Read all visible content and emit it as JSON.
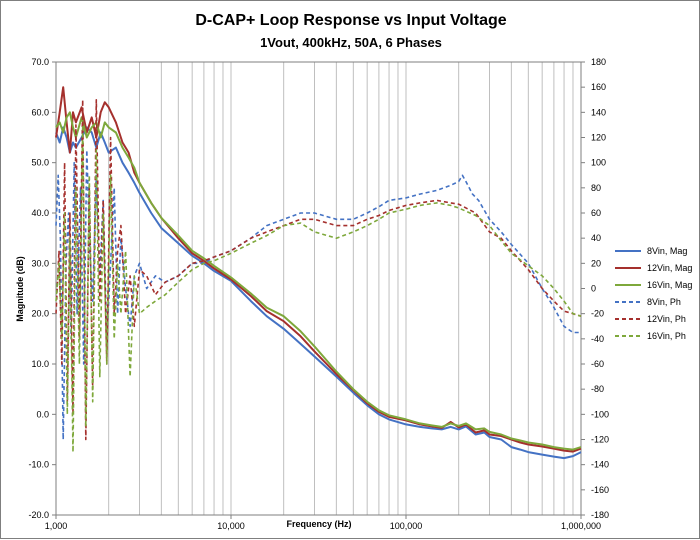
{
  "chart_data": {
    "type": "line",
    "title": "D-CAP+ Loop Response vs Input Voltage",
    "subtitle": "1Vout, 400kHz, 50A, 6 Phases",
    "xlabel": "Frequency (Hz)",
    "ylabel": "Magnitude (dB)",
    "xscale": "log",
    "xlim": [
      1000,
      1000000
    ],
    "ylim": [
      -20,
      70
    ],
    "y2lim": [
      -180,
      180
    ],
    "x_tick_values": [
      1000,
      10000,
      100000,
      1000000
    ],
    "x_tick_labels": [
      "1,000",
      "10,000",
      "100,000",
      "1,000,000"
    ],
    "y_tick_labels": [
      "70.0",
      "60.0",
      "50.0",
      "40.0",
      "30.0",
      "20.0",
      "10.0",
      "0.0",
      "-10.0",
      "-20.0"
    ],
    "y2_tick_labels": [
      "180",
      "160",
      "140",
      "120",
      "100",
      "80",
      "60",
      "40",
      "20",
      "0",
      "-20",
      "-40",
      "-60",
      "-80",
      "-100",
      "-120",
      "-140",
      "-160",
      "-180"
    ],
    "grid": "log-vertical",
    "legend_position": "right",
    "colors": {
      "8vin": "#4472c4",
      "12vin": "#a5302d",
      "16vin": "#7ea83b",
      "grid": "#bfbfbf",
      "frame": "#7f7f7f"
    },
    "series": [
      {
        "name": "8Vin, Mag",
        "axis": "left",
        "style": "solid",
        "color": "#4472c4",
        "x": [
          1000,
          1050,
          1100,
          1150,
          1200,
          1250,
          1300,
          1400,
          1500,
          1600,
          1700,
          1800,
          1900,
          2000,
          2200,
          2400,
          2600,
          2800,
          3000,
          3500,
          4000,
          5000,
          6000,
          7000,
          8000,
          10000,
          13000,
          16000,
          20000,
          25000,
          30000,
          40000,
          50000,
          60000,
          70000,
          80000,
          100000,
          120000,
          140000,
          160000,
          180000,
          200000,
          220000,
          250000,
          280000,
          300000,
          350000,
          400000,
          450000,
          500000,
          600000,
          700000,
          800000,
          900000,
          1000000
        ],
        "y": [
          56,
          54,
          57,
          55,
          52,
          54,
          53,
          55,
          57,
          56,
          53,
          56,
          54,
          52,
          53,
          50,
          48,
          46,
          44,
          40,
          37,
          34,
          31.5,
          30,
          28.5,
          26.5,
          22.5,
          19.5,
          17,
          14,
          11.5,
          7.5,
          4.3,
          1.8,
          0,
          -1,
          -2,
          -2.5,
          -2.8,
          -3,
          -2.5,
          -3,
          -2.4,
          -4,
          -3.6,
          -4.5,
          -5,
          -6.5,
          -7,
          -7.5,
          -8,
          -8.4,
          -8.7,
          -8.3,
          -7.5
        ]
      },
      {
        "name": "12Vin, Mag",
        "axis": "left",
        "style": "solid",
        "color": "#a5302d",
        "x": [
          1000,
          1050,
          1100,
          1150,
          1200,
          1250,
          1300,
          1400,
          1500,
          1600,
          1700,
          1800,
          1900,
          2000,
          2200,
          2400,
          2600,
          2800,
          3000,
          3500,
          4000,
          5000,
          6000,
          7000,
          8000,
          10000,
          13000,
          16000,
          20000,
          25000,
          30000,
          40000,
          50000,
          60000,
          70000,
          80000,
          100000,
          120000,
          140000,
          160000,
          180000,
          200000,
          220000,
          250000,
          280000,
          300000,
          350000,
          400000,
          450000,
          500000,
          600000,
          700000,
          800000,
          900000,
          1000000
        ],
        "y": [
          55,
          60,
          65,
          58,
          52,
          60,
          58,
          61,
          56,
          59,
          55,
          60,
          62,
          61,
          58,
          54,
          52,
          48,
          46,
          42,
          39,
          35,
          32,
          30.5,
          29,
          26.8,
          23.5,
          20.5,
          18.5,
          15.5,
          12.5,
          8,
          4.8,
          2.2,
          0.5,
          -0.5,
          -1.2,
          -2,
          -2.4,
          -2.7,
          -1.5,
          -2.6,
          -2,
          -3.6,
          -3.2,
          -4,
          -4.3,
          -5,
          -5.6,
          -6,
          -6.4,
          -6.8,
          -7.2,
          -7.4,
          -6.8
        ]
      },
      {
        "name": "16Vin, Mag",
        "axis": "left",
        "style": "solid",
        "color": "#7ea83b",
        "x": [
          1000,
          1050,
          1100,
          1150,
          1200,
          1250,
          1300,
          1400,
          1500,
          1600,
          1700,
          1800,
          1900,
          2000,
          2200,
          2400,
          2600,
          2800,
          3000,
          3500,
          4000,
          5000,
          6000,
          7000,
          8000,
          10000,
          13000,
          16000,
          20000,
          25000,
          30000,
          40000,
          50000,
          60000,
          70000,
          80000,
          100000,
          120000,
          140000,
          160000,
          180000,
          200000,
          220000,
          250000,
          280000,
          300000,
          350000,
          400000,
          450000,
          500000,
          600000,
          700000,
          800000,
          900000,
          1000000
        ],
        "y": [
          57,
          58,
          56,
          59,
          60,
          57,
          55,
          59,
          55,
          57,
          58,
          55,
          58,
          57,
          56,
          53,
          51,
          49,
          46,
          42,
          39,
          35.5,
          32.5,
          31,
          29.5,
          27.2,
          24,
          21.2,
          19.5,
          16.5,
          13.5,
          8.5,
          5,
          2.5,
          0.8,
          -0.2,
          -1,
          -1.8,
          -2.2,
          -2.5,
          -1.8,
          -2.3,
          -1.8,
          -3,
          -2.8,
          -3.5,
          -4,
          -4.8,
          -5.2,
          -5.6,
          -6,
          -6.5,
          -6.8,
          -7,
          -6.5
        ]
      },
      {
        "name": "8Vin, Ph",
        "axis": "right",
        "style": "dashed",
        "color": "#4472c4",
        "x": [
          1000,
          1030,
          1060,
          1100,
          1140,
          1180,
          1220,
          1270,
          1320,
          1380,
          1440,
          1500,
          1560,
          1620,
          1700,
          1780,
          1860,
          1950,
          2050,
          2150,
          2250,
          2350,
          2500,
          2650,
          2800,
          3000,
          3300,
          3700,
          4200,
          5000,
          6000,
          7000,
          8000,
          10000,
          13000,
          16000,
          20000,
          25000,
          30000,
          40000,
          50000,
          60000,
          70000,
          80000,
          100000,
          120000,
          150000,
          180000,
          200000,
          210000,
          220000,
          240000,
          260000,
          300000,
          350000,
          400000,
          500000,
          600000,
          700000,
          800000,
          900000,
          1000000
        ],
        "y": [
          50,
          90,
          40,
          -120,
          20,
          60,
          -40,
          100,
          -20,
          80,
          -60,
          110,
          30,
          -10,
          90,
          10,
          70,
          -40,
          20,
          80,
          -20,
          40,
          0,
          -30,
          10,
          20,
          0,
          10,
          5,
          10,
          20,
          20,
          25,
          30,
          40,
          50,
          55,
          60,
          60,
          55,
          55,
          60,
          65,
          70,
          72,
          75,
          78,
          82,
          85,
          90,
          85,
          75,
          70,
          55,
          45,
          35,
          20,
          0,
          -15,
          -30,
          -35,
          -35
        ]
      },
      {
        "name": "12Vin, Ph",
        "axis": "right",
        "style": "dashed",
        "color": "#a5302d",
        "x": [
          1000,
          1040,
          1080,
          1120,
          1160,
          1200,
          1250,
          1300,
          1360,
          1420,
          1480,
          1550,
          1620,
          1700,
          1780,
          1860,
          1950,
          2050,
          2150,
          2250,
          2350,
          2500,
          2650,
          2800,
          3000,
          3300,
          3700,
          4200,
          5000,
          6000,
          7000,
          8000,
          10000,
          13000,
          16000,
          20000,
          25000,
          30000,
          40000,
          50000,
          60000,
          70000,
          80000,
          100000,
          120000,
          150000,
          180000,
          200000,
          250000,
          300000,
          350000,
          400000,
          500000,
          600000,
          700000,
          800000,
          900000,
          1000000
        ],
        "y": [
          -20,
          30,
          -60,
          100,
          -90,
          60,
          -100,
          130,
          -40,
          150,
          -120,
          80,
          -80,
          150,
          -10,
          70,
          -60,
          120,
          -20,
          30,
          50,
          -20,
          10,
          -30,
          15,
          10,
          -5,
          5,
          10,
          20,
          22,
          25,
          30,
          40,
          45,
          50,
          55,
          55,
          50,
          50,
          55,
          58,
          62,
          66,
          68,
          70,
          68,
          67,
          60,
          45,
          40,
          30,
          15,
          0,
          -10,
          -18,
          -20,
          -22
        ]
      },
      {
        "name": "16Vin, Ph",
        "axis": "right",
        "style": "dashed",
        "color": "#7ea83b",
        "x": [
          1000,
          1040,
          1080,
          1120,
          1160,
          1200,
          1250,
          1300,
          1360,
          1420,
          1480,
          1550,
          1620,
          1700,
          1780,
          1860,
          1950,
          2050,
          2150,
          2250,
          2350,
          2500,
          2650,
          2800,
          3000,
          3300,
          3700,
          4200,
          5000,
          6000,
          7000,
          8000,
          10000,
          13000,
          16000,
          20000,
          25000,
          30000,
          40000,
          50000,
          60000,
          70000,
          80000,
          100000,
          120000,
          150000,
          180000,
          200000,
          250000,
          300000,
          350000,
          400000,
          500000,
          600000,
          700000,
          800000,
          900000,
          1000000
        ],
        "y": [
          -10,
          20,
          -40,
          60,
          -100,
          40,
          -130,
          80,
          -60,
          130,
          -110,
          90,
          -90,
          110,
          -70,
          60,
          -60,
          90,
          -40,
          20,
          -20,
          30,
          -70,
          10,
          -20,
          -15,
          -10,
          -5,
          5,
          15,
          20,
          22,
          28,
          36,
          42,
          50,
          52,
          45,
          40,
          45,
          50,
          55,
          60,
          63,
          66,
          68,
          66,
          64,
          58,
          50,
          38,
          28,
          18,
          10,
          0,
          -10,
          -20,
          -22
        ]
      }
    ]
  }
}
